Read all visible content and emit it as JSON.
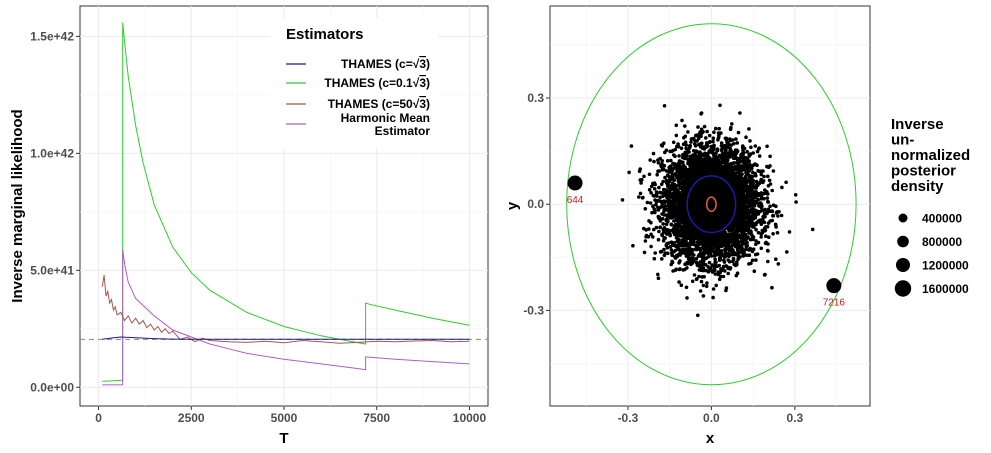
{
  "chart_data": [
    {
      "type": "line",
      "xlabel": "T",
      "ylabel": "Inverse marginal likelihood",
      "xlim": [
        -500,
        10500
      ],
      "ylim": [
        -8e+40,
        1.63e+42
      ],
      "x_ticks": [
        0,
        2500,
        5000,
        7500,
        10000
      ],
      "x_tick_labels": [
        "0",
        "2500",
        "5000",
        "7500",
        "10000"
      ],
      "y_ticks": [
        0,
        5e+41,
        1e+42,
        1.5e+42
      ],
      "y_tick_labels": [
        "0.0e+00",
        "5.0e+41",
        "1.0e+42",
        "1.5e+42"
      ],
      "reference_line": {
        "y": 2.05e+41,
        "style": "dashed",
        "color": "#888888"
      },
      "legend": {
        "title": "Estimators",
        "placement": "top-right"
      },
      "series": [
        {
          "name": "THAMES (c=",
          "sqrt_arg": "3",
          "suffix": ")",
          "color": "#1a1a8c",
          "x": [
            100,
            300,
            600,
            1000,
            1500,
            2000,
            2500,
            3000,
            4000,
            5000,
            6000,
            7000,
            7500,
            8000,
            9000,
            10000
          ],
          "y": [
            2.05e+41,
            2.1e+41,
            2.15e+41,
            2.12e+41,
            2.08e+41,
            2.06e+41,
            2.05e+41,
            2.05e+41,
            2.05e+41,
            2.05e+41,
            2.05e+41,
            2.05e+41,
            2.05e+41,
            2.05e+41,
            2.05e+41,
            2.05e+41
          ]
        },
        {
          "name": "THAMES (c=0.1",
          "sqrt_arg": "3",
          "suffix": ")",
          "color": "#2ecc2e",
          "x": [
            100,
            400,
            650,
            651,
            700,
            800,
            1000,
            1200,
            1500,
            2000,
            2500,
            3000,
            4000,
            5000,
            6000,
            7000,
            7199,
            7200,
            7300,
            8000,
            9000,
            10000
          ],
          "y": [
            2.5e+40,
            2.8e+40,
            3e+40,
            1.56e+42,
            1.48e+42,
            1.33e+42,
            1.12e+42,
            9.6e+41,
            7.8e+41,
            6e+41,
            4.9e+41,
            4.15e+41,
            3.2e+41,
            2.6e+41,
            2.2e+41,
            1.9e+41,
            1.85e+41,
            3.6e+41,
            3.55e+41,
            3.3e+41,
            2.95e+41,
            2.65e+41
          ]
        },
        {
          "name": "THAMES (c=50",
          "sqrt_arg": "3",
          "suffix": ")",
          "color": "#a0584e",
          "x": [
            100,
            150,
            200,
            250,
            300,
            350,
            400,
            450,
            500,
            600,
            700,
            800,
            900,
            1000,
            1100,
            1200,
            1300,
            1400,
            1500,
            1600,
            1700,
            1800,
            1900,
            2000,
            2200,
            2400,
            2600,
            2800,
            3000,
            3500,
            4000,
            4500,
            5000,
            5500,
            6000,
            6500,
            7000,
            7500,
            8000,
            8500,
            9000,
            9500,
            10000
          ],
          "y": [
            4.3e+41,
            4.8e+41,
            3.9e+41,
            4.1e+41,
            3.6e+41,
            3.75e+41,
            3.3e+41,
            3.45e+41,
            3.1e+41,
            3.2e+41,
            2.85e+41,
            3.05e+41,
            2.75e+41,
            2.95e+41,
            2.7e+41,
            2.85e+41,
            2.55e+41,
            2.7e+41,
            2.45e+41,
            2.6e+41,
            2.35e+41,
            2.5e+41,
            2.3e+41,
            2.4e+41,
            2.05e+41,
            2.15e+41,
            1.95e+41,
            2.1e+41,
            2e+41,
            1.95e+41,
            1.92e+41,
            1.97e+41,
            1.9e+41,
            2e+41,
            1.95e+41,
            1.88e+41,
            1.92e+41,
            1.97e+41,
            1.95e+41,
            1.98e+41,
            2e+41,
            1.95e+41,
            1.97e+41
          ]
        },
        {
          "name": "Harmonic Mean",
          "name_line2": "Estimator",
          "color": "#b05cc8",
          "x": [
            100,
            300,
            500,
            650,
            651,
            700,
            800,
            1000,
            1200,
            1500,
            2000,
            2500,
            3000,
            3500,
            4000,
            5000,
            6000,
            7000,
            7199,
            7200,
            7500,
            8000,
            9000,
            10000
          ],
          "y": [
            1e+40,
            1e+40,
            1e+40,
            1e+40,
            5.9e+41,
            5.3e+41,
            4.5e+41,
            3.8e+41,
            3.5e+41,
            3.05e+41,
            2.45e+41,
            2.15e+41,
            1.85e+41,
            1.65e+41,
            1.45e+41,
            1.2e+41,
            1e+41,
            8e+40,
            7.5e+40,
            1.3e+41,
            1.26e+41,
            1.2e+41,
            1.1e+41,
            1e+41
          ]
        }
      ]
    },
    {
      "type": "scatter",
      "xlabel": "x",
      "ylabel": "y",
      "xlim": [
        -0.58,
        0.57
      ],
      "ylim": [
        -0.57,
        0.56
      ],
      "x_ticks": [
        -0.3,
        0.0,
        0.3
      ],
      "x_tick_labels": [
        "-0.3",
        "0.0",
        "0.3"
      ],
      "y_ticks": [
        -0.3,
        0.0,
        0.3
      ],
      "y_tick_labels": [
        "-0.3",
        "0.0",
        "0.3"
      ],
      "cloud": {
        "center": [
          0.0,
          0.0
        ],
        "sd_x": 0.085,
        "sd_y": 0.078,
        "count": 5200
      },
      "outliers": [
        {
          "label": "644",
          "x": -0.49,
          "y": 0.06
        },
        {
          "label": "7216",
          "x": 0.44,
          "y": -0.23
        }
      ],
      "ellipses": [
        {
          "name": "outer",
          "color": "#2ecc2e",
          "cx": 0.0,
          "cy": 0.0,
          "rx": 0.52,
          "ry": 0.51
        },
        {
          "name": "middle",
          "color": "#1a1aa8",
          "cx": 0.0,
          "cy": 0.0,
          "rx": 0.087,
          "ry": 0.08
        },
        {
          "name": "inner",
          "color": "#e05a4a",
          "cx": 0.0,
          "cy": 0.0,
          "rx": 0.017,
          "ry": 0.02
        }
      ],
      "legend": {
        "title_lines": [
          "Inverse",
          "un-",
          "normalized",
          "posterior",
          "density"
        ],
        "entries": [
          {
            "label": "400000",
            "value": 400000
          },
          {
            "label": "800000",
            "value": 800000
          },
          {
            "label": "1200000",
            "value": 1200000
          },
          {
            "label": "1600000",
            "value": 1600000
          }
        ]
      }
    }
  ]
}
